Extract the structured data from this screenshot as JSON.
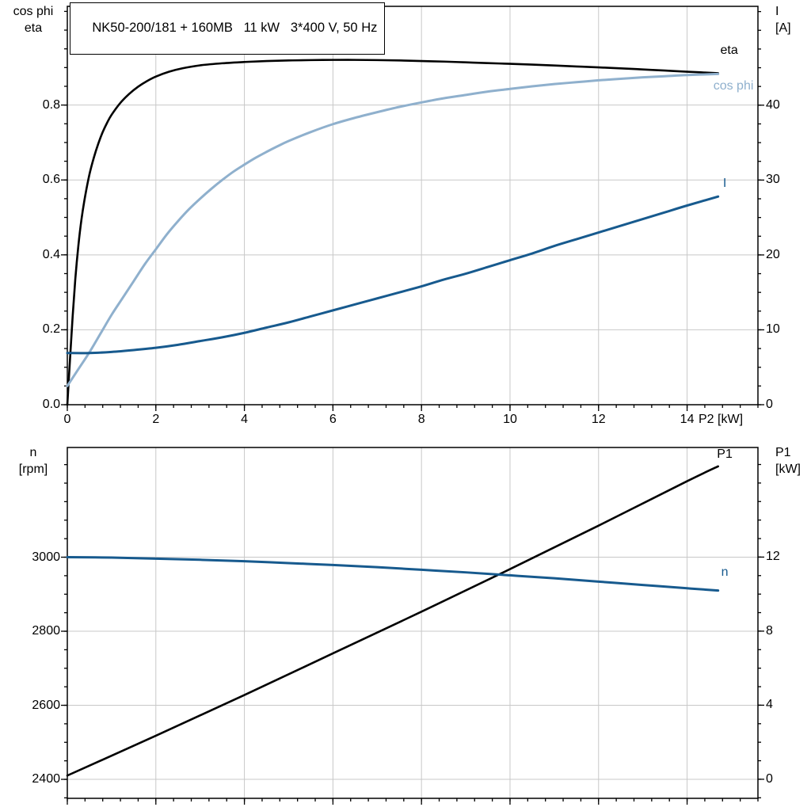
{
  "title": "NK50-200/181 + 160MB   11 kW   3*400 V, 50 Hz",
  "colors": {
    "curve_black": "#000000",
    "curve_dark_blue": "#175a8e",
    "curve_light_blue": "#8fb0cd",
    "grid": "#c8c8c8",
    "background": "#ffffff"
  },
  "chart_data": [
    {
      "id": "top",
      "type": "line",
      "title": "NK50-200/181 + 160MB   11 kW   3*400 V, 50 Hz",
      "x_axis": {
        "label": "P2 [kW]",
        "lim": [
          0,
          15.6
        ],
        "tick_values": [
          0,
          2,
          4,
          6,
          8,
          10,
          12,
          14
        ],
        "tick_labels": [
          "0",
          "2",
          "4",
          "6",
          "8",
          "10",
          "12",
          "14"
        ],
        "minor_step": 0.4,
        "show_labels": true
      },
      "left_axis": {
        "header": [
          "cos phi",
          "eta"
        ],
        "lim": [
          0,
          1.0635
        ],
        "tick_values": [
          0,
          0.2,
          0.4,
          0.6,
          0.8
        ],
        "tick_labels": [
          "0.0",
          "0.2",
          "0.4",
          "0.6",
          "0.8"
        ],
        "minor_step": 0.05
      },
      "right_axis": {
        "header": [
          "I",
          "[A]"
        ],
        "lim": [
          0,
          53.2
        ],
        "tick_values": [
          0,
          10,
          20,
          30,
          40
        ],
        "tick_labels": [
          "0",
          "10",
          "20",
          "30",
          "40"
        ],
        "minor_step": 2.5
      },
      "series": [
        {
          "name": "eta",
          "axis": "left",
          "color": "#000000",
          "width": 2.6,
          "label": {
            "text": "eta",
            "x": 14.95,
            "y": 0.945,
            "anchor": "middle"
          },
          "points": [
            [
              0,
              0
            ],
            [
              0.06,
              0.12
            ],
            [
              0.12,
              0.235
            ],
            [
              0.18,
              0.335
            ],
            [
              0.25,
              0.425
            ],
            [
              0.32,
              0.495
            ],
            [
              0.4,
              0.555
            ],
            [
              0.5,
              0.615
            ],
            [
              0.6,
              0.66
            ],
            [
              0.7,
              0.697
            ],
            [
              0.8,
              0.728
            ],
            [
              0.9,
              0.753
            ],
            [
              1.0,
              0.774
            ],
            [
              1.2,
              0.806
            ],
            [
              1.4,
              0.83
            ],
            [
              1.6,
              0.849
            ],
            [
              1.8,
              0.864
            ],
            [
              2.0,
              0.876
            ],
            [
              2.3,
              0.889
            ],
            [
              2.6,
              0.898
            ],
            [
              3.0,
              0.906
            ],
            [
              3.5,
              0.9115
            ],
            [
              4.0,
              0.915
            ],
            [
              4.5,
              0.9175
            ],
            [
              5.0,
              0.919
            ],
            [
              5.5,
              0.92
            ],
            [
              6.0,
              0.9205
            ],
            [
              6.5,
              0.9205
            ],
            [
              7.0,
              0.92
            ],
            [
              7.5,
              0.919
            ],
            [
              8.0,
              0.9175
            ],
            [
              8.5,
              0.916
            ],
            [
              9.0,
              0.914
            ],
            [
              9.5,
              0.912
            ],
            [
              10.0,
              0.91
            ],
            [
              10.5,
              0.908
            ],
            [
              11.0,
              0.9055
            ],
            [
              11.5,
              0.903
            ],
            [
              12.0,
              0.9005
            ],
            [
              12.5,
              0.898
            ],
            [
              13.0,
              0.895
            ],
            [
              13.5,
              0.892
            ],
            [
              14.0,
              0.889
            ],
            [
              14.7,
              0.885
            ]
          ]
        },
        {
          "name": "cos phi",
          "axis": "left",
          "color": "#8fb0cd",
          "width": 3,
          "label": {
            "text": "cos phi",
            "x": 15.5,
            "y": 0.85,
            "anchor": "end"
          },
          "points": [
            [
              0,
              0.05
            ],
            [
              0.25,
              0.095
            ],
            [
              0.5,
              0.14
            ],
            [
              0.75,
              0.19
            ],
            [
              1,
              0.24
            ],
            [
              1.25,
              0.285
            ],
            [
              1.5,
              0.33
            ],
            [
              1.75,
              0.375
            ],
            [
              2,
              0.415
            ],
            [
              2.25,
              0.455
            ],
            [
              2.5,
              0.49
            ],
            [
              2.75,
              0.522
            ],
            [
              3,
              0.55
            ],
            [
              3.25,
              0.576
            ],
            [
              3.5,
              0.6
            ],
            [
              3.75,
              0.622
            ],
            [
              4,
              0.641
            ],
            [
              4.25,
              0.659
            ],
            [
              4.5,
              0.675
            ],
            [
              4.75,
              0.69
            ],
            [
              5,
              0.704
            ],
            [
              5.5,
              0.728
            ],
            [
              6,
              0.749
            ],
            [
              6.5,
              0.766
            ],
            [
              7,
              0.781
            ],
            [
              7.5,
              0.795
            ],
            [
              8,
              0.807
            ],
            [
              8.5,
              0.818
            ],
            [
              9,
              0.827
            ],
            [
              9.5,
              0.836
            ],
            [
              10,
              0.843
            ],
            [
              10.5,
              0.85
            ],
            [
              11,
              0.856
            ],
            [
              11.5,
              0.861
            ],
            [
              12,
              0.866
            ],
            [
              12.5,
              0.87
            ],
            [
              13,
              0.874
            ],
            [
              13.5,
              0.877
            ],
            [
              14,
              0.88
            ],
            [
              14.7,
              0.883
            ]
          ]
        },
        {
          "name": "I",
          "axis": "right",
          "color": "#175a8e",
          "width": 3,
          "label": {
            "text": "I",
            "x": 14.85,
            "y": 29.5,
            "anchor": "middle"
          },
          "points": [
            [
              0,
              6.9
            ],
            [
              0.5,
              6.9
            ],
            [
              1,
              7.05
            ],
            [
              1.5,
              7.3
            ],
            [
              2,
              7.6
            ],
            [
              2.5,
              8.0
            ],
            [
              3,
              8.5
            ],
            [
              3.5,
              9.0
            ],
            [
              4,
              9.6
            ],
            [
              4.5,
              10.3
            ],
            [
              5,
              11.0
            ],
            [
              5.5,
              11.8
            ],
            [
              6,
              12.6
            ],
            [
              6.5,
              13.4
            ],
            [
              7,
              14.2
            ],
            [
              7.5,
              15.0
            ],
            [
              8,
              15.8
            ],
            [
              8.5,
              16.7
            ],
            [
              9,
              17.5
            ],
            [
              9.5,
              18.4
            ],
            [
              10,
              19.3
            ],
            [
              10.5,
              20.2
            ],
            [
              11,
              21.2
            ],
            [
              11.5,
              22.1
            ],
            [
              12,
              23.0
            ],
            [
              12.5,
              23.9
            ],
            [
              13,
              24.8
            ],
            [
              13.5,
              25.7
            ],
            [
              14,
              26.6
            ],
            [
              14.7,
              27.8
            ]
          ]
        }
      ]
    },
    {
      "id": "bottom",
      "type": "line",
      "title": "",
      "x_axis": {
        "label": "",
        "lim": [
          0,
          15.6
        ],
        "tick_values": [
          0,
          2,
          4,
          6,
          8,
          10,
          12,
          14
        ],
        "tick_labels": [],
        "minor_step": 0.4,
        "show_labels": false
      },
      "left_axis": {
        "header": [
          "n",
          "[rpm]"
        ],
        "lim": [
          2348.7,
          3296.3
        ],
        "tick_values": [
          2400,
          2600,
          2800,
          3000
        ],
        "tick_labels": [
          "2400",
          "2600",
          "2800",
          "3000"
        ],
        "minor_step": 50
      },
      "right_axis": {
        "header": [
          "P1",
          "[kW]"
        ],
        "lim": [
          -1.03,
          17.92
        ],
        "tick_values": [
          0,
          4,
          8,
          12
        ],
        "tick_labels": [
          "0",
          "4",
          "8",
          "12"
        ],
        "minor_step": 1
      },
      "series": [
        {
          "name": "P1",
          "axis": "right",
          "color": "#000000",
          "width": 2.6,
          "label": {
            "text": "P1",
            "x": 14.85,
            "y": 17.55,
            "anchor": "middle"
          },
          "points": [
            [
              0,
              0.2
            ],
            [
              2,
              2.35
            ],
            [
              4,
              4.55
            ],
            [
              6,
              6.8
            ],
            [
              8,
              9.05
            ],
            [
              10,
              11.35
            ],
            [
              12,
              13.7
            ],
            [
              14,
              16.1
            ],
            [
              14.7,
              16.9
            ]
          ]
        },
        {
          "name": "n",
          "axis": "left",
          "color": "#175a8e",
          "width": 3,
          "label": {
            "text": "n",
            "x": 14.85,
            "y": 2958,
            "anchor": "middle"
          },
          "points": [
            [
              0,
              3000
            ],
            [
              1,
              2999
            ],
            [
              2,
              2996
            ],
            [
              3,
              2993
            ],
            [
              4,
              2989
            ],
            [
              5,
              2984
            ],
            [
              6,
              2979
            ],
            [
              7,
              2973
            ],
            [
              8,
              2966
            ],
            [
              9,
              2959
            ],
            [
              10,
              2951
            ],
            [
              11,
              2943
            ],
            [
              12,
              2934
            ],
            [
              13,
              2925
            ],
            [
              14,
              2916
            ],
            [
              14.7,
              2910
            ]
          ]
        }
      ]
    }
  ]
}
